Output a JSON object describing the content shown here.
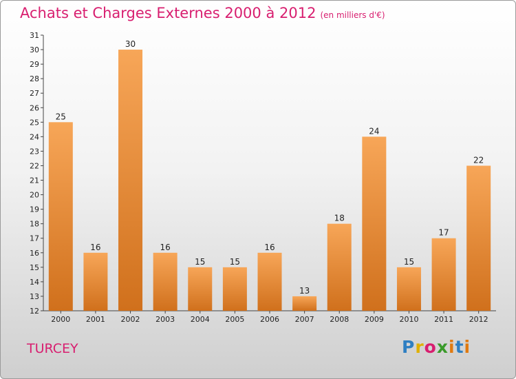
{
  "header": {
    "title": "Achats et Charges Externes 2000 à 2012",
    "unit": "(en milliers d'€)"
  },
  "commune": "TURCEY",
  "logo": {
    "p": "P",
    "r": "r",
    "o": "o",
    "x": "x",
    "i": "i",
    "t": "t",
    "i2": "i"
  },
  "colors": {
    "bar_top": "#f7a658",
    "bar_bottom": "#d0701c",
    "accent": "#d81e6f"
  },
  "chart_data": {
    "type": "bar",
    "title": "Achats et Charges Externes 2000 à 2012",
    "xlabel": "",
    "ylabel": "",
    "categories": [
      "2000",
      "2001",
      "2002",
      "2003",
      "2004",
      "2005",
      "2006",
      "2007",
      "2008",
      "2009",
      "2010",
      "2011",
      "2012"
    ],
    "values": [
      25,
      16,
      30,
      16,
      15,
      15,
      16,
      13,
      18,
      24,
      15,
      17,
      22
    ],
    "ylim": [
      12,
      31
    ],
    "yticks": [
      12,
      13,
      14,
      15,
      16,
      17,
      18,
      19,
      20,
      21,
      22,
      23,
      24,
      25,
      26,
      27,
      28,
      29,
      30,
      31
    ],
    "grid": false,
    "legend": "none"
  }
}
